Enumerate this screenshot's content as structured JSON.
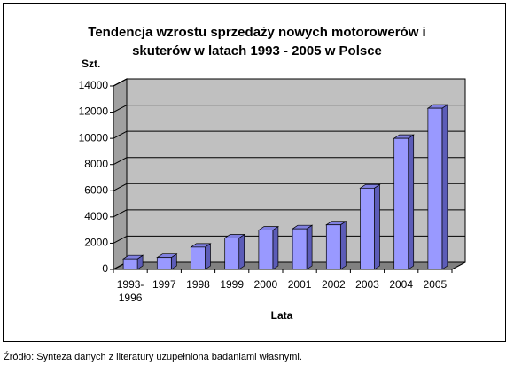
{
  "chart_data": {
    "type": "bar3d",
    "title": "Tendencja wzrostu sprzedaży nowych motorowerów i skuterów w latach 1993 - 2005 w Polsce",
    "y_label": "Szt.",
    "x_label": "Lata",
    "source": "Źródło: Synteza danych z literatury uzupełniona badaniami własnymi.",
    "categories": [
      "1993-1996",
      "1997",
      "1998",
      "1999",
      "2000",
      "2001",
      "2002",
      "2003",
      "2004",
      "2005"
    ],
    "values": [
      800,
      900,
      1700,
      2400,
      3000,
      3100,
      3400,
      6200,
      10000,
      12300
    ],
    "color": "#9999ff",
    "ylim": [
      0,
      14000
    ],
    "yticks": [
      0,
      2000,
      4000,
      6000,
      8000,
      10000,
      12000,
      14000
    ],
    "grid": true
  }
}
